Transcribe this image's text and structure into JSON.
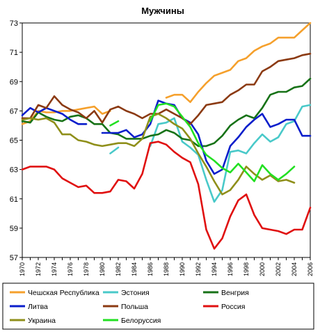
{
  "chart_data": {
    "type": "line",
    "title": "Мужчины",
    "xlabel": "",
    "ylabel": "",
    "ylim": [
      57,
      73
    ],
    "yticks": [
      57,
      59,
      61,
      63,
      65,
      67,
      69,
      71,
      73
    ],
    "xlim": [
      1970,
      2006
    ],
    "xticks": [
      1970,
      1972,
      1974,
      1976,
      1978,
      1980,
      1982,
      1984,
      1986,
      1988,
      1990,
      1992,
      1994,
      1996,
      1998,
      2000,
      2002,
      2004,
      2006
    ],
    "grid": false,
    "legend_position": "bottom",
    "series": [
      {
        "name": "Чешская Республика",
        "color": "#f5a02c",
        "values": [
          [
            1970,
            66.1
          ],
          [
            1971,
            66.3
          ],
          [
            1972,
            67.0
          ],
          [
            1973,
            66.9
          ],
          [
            1974,
            66.9
          ],
          [
            1975,
            67.0
          ],
          [
            1976,
            67.0
          ],
          [
            1977,
            67.1
          ],
          [
            1978,
            67.2
          ],
          [
            1979,
            67.3
          ],
          [
            1980,
            66.8
          ],
          [
            1981,
            67.0
          ],
          [
            1982,
            null
          ],
          [
            1983,
            null
          ],
          [
            1984,
            null
          ],
          [
            1985,
            null
          ],
          [
            1986,
            null
          ],
          [
            1987,
            null
          ],
          [
            1988,
            67.9
          ],
          [
            1989,
            68.1
          ],
          [
            1990,
            68.1
          ],
          [
            1991,
            67.6
          ],
          [
            1992,
            68.3
          ],
          [
            1993,
            68.9
          ],
          [
            1994,
            69.4
          ],
          [
            1995,
            69.6
          ],
          [
            1996,
            69.8
          ],
          [
            1997,
            70.4
          ],
          [
            1998,
            70.6
          ],
          [
            1999,
            71.1
          ],
          [
            2000,
            71.4
          ],
          [
            2001,
            71.6
          ],
          [
            2002,
            72.0
          ],
          [
            2003,
            72.0
          ],
          [
            2004,
            72.0
          ],
          [
            2005,
            72.5
          ],
          [
            2006,
            73.0
          ]
        ]
      },
      {
        "name": "Эстония",
        "color": "#49c9c9",
        "values": [
          [
            1970,
            null
          ],
          [
            1971,
            null
          ],
          [
            1972,
            null
          ],
          [
            1973,
            null
          ],
          [
            1974,
            null
          ],
          [
            1975,
            null
          ],
          [
            1976,
            null
          ],
          [
            1977,
            null
          ],
          [
            1978,
            null
          ],
          [
            1979,
            null
          ],
          [
            1980,
            null
          ],
          [
            1981,
            64.1
          ],
          [
            1982,
            64.5
          ],
          [
            1983,
            null
          ],
          [
            1984,
            null
          ],
          [
            1985,
            null
          ],
          [
            1986,
            64.6
          ],
          [
            1987,
            66.1
          ],
          [
            1988,
            66.2
          ],
          [
            1989,
            66.5
          ],
          [
            1990,
            64.9
          ],
          [
            1991,
            64.5
          ],
          [
            1992,
            64.0
          ],
          [
            1993,
            62.3
          ],
          [
            1994,
            60.8
          ],
          [
            1995,
            61.6
          ],
          [
            1996,
            64.2
          ],
          [
            1997,
            64.3
          ],
          [
            1998,
            64.1
          ],
          [
            1999,
            64.8
          ],
          [
            2000,
            65.4
          ],
          [
            2001,
            64.9
          ],
          [
            2002,
            65.2
          ],
          [
            2003,
            66.1
          ],
          [
            2004,
            66.3
          ],
          [
            2005,
            67.3
          ],
          [
            2006,
            67.4
          ]
        ]
      },
      {
        "name": "Венгрия",
        "color": "#177217",
        "values": [
          [
            1970,
            66.3
          ],
          [
            1971,
            66.2
          ],
          [
            1972,
            66.9
          ],
          [
            1973,
            66.6
          ],
          [
            1974,
            66.4
          ],
          [
            1975,
            66.3
          ],
          [
            1976,
            66.6
          ],
          [
            1977,
            66.7
          ],
          [
            1978,
            66.5
          ],
          [
            1979,
            66.1
          ],
          [
            1980,
            66.1
          ],
          [
            1981,
            65.5
          ],
          [
            1982,
            65.4
          ],
          [
            1983,
            65.1
          ],
          [
            1984,
            65.1
          ],
          [
            1985,
            65.1
          ],
          [
            1986,
            65.3
          ],
          [
            1987,
            65.4
          ],
          [
            1988,
            65.7
          ],
          [
            1989,
            65.5
          ],
          [
            1990,
            65.1
          ],
          [
            1991,
            65.0
          ],
          [
            1992,
            64.6
          ],
          [
            1993,
            64.6
          ],
          [
            1994,
            64.8
          ],
          [
            1995,
            65.3
          ],
          [
            1996,
            66.0
          ],
          [
            1997,
            66.4
          ],
          [
            1998,
            66.7
          ],
          [
            1999,
            66.5
          ],
          [
            2000,
            67.2
          ],
          [
            2001,
            68.1
          ],
          [
            2002,
            68.3
          ],
          [
            2003,
            68.3
          ],
          [
            2004,
            68.6
          ],
          [
            2005,
            68.7
          ],
          [
            2006,
            69.2
          ]
        ]
      },
      {
        "name": "Литва",
        "color": "#0a1ecb",
        "values": [
          [
            1970,
            66.7
          ],
          [
            1971,
            67.2
          ],
          [
            1972,
            66.9
          ],
          [
            1973,
            67.2
          ],
          [
            1974,
            67.0
          ],
          [
            1975,
            66.8
          ],
          [
            1976,
            66.4
          ],
          [
            1977,
            66.1
          ],
          [
            1978,
            66.1
          ],
          [
            1979,
            null
          ],
          [
            1980,
            65.5
          ],
          [
            1981,
            65.5
          ],
          [
            1982,
            65.5
          ],
          [
            1983,
            65.7
          ],
          [
            1984,
            65.2
          ],
          [
            1985,
            65.4
          ],
          [
            1986,
            66.1
          ],
          [
            1987,
            67.7
          ],
          [
            1988,
            67.5
          ],
          [
            1989,
            67.4
          ],
          [
            1990,
            66.5
          ],
          [
            1991,
            66.2
          ],
          [
            1992,
            65.4
          ],
          [
            1993,
            63.6
          ],
          [
            1994,
            62.7
          ],
          [
            1995,
            63.0
          ],
          [
            1996,
            64.6
          ],
          [
            1997,
            65.2
          ],
          [
            1998,
            65.9
          ],
          [
            1999,
            66.4
          ],
          [
            2000,
            66.8
          ],
          [
            2001,
            65.9
          ],
          [
            2002,
            66.1
          ],
          [
            2003,
            66.4
          ],
          [
            2004,
            66.4
          ],
          [
            2005,
            65.3
          ],
          [
            2006,
            65.3
          ]
        ]
      },
      {
        "name": "Польша",
        "color": "#8b3a12",
        "values": [
          [
            1970,
            66.5
          ],
          [
            1971,
            66.5
          ],
          [
            1972,
            67.4
          ],
          [
            1973,
            67.2
          ],
          [
            1974,
            68.0
          ],
          [
            1975,
            67.4
          ],
          [
            1976,
            67.1
          ],
          [
            1977,
            66.9
          ],
          [
            1978,
            66.5
          ],
          [
            1979,
            67.0
          ],
          [
            1980,
            66.2
          ],
          [
            1981,
            67.1
          ],
          [
            1982,
            67.3
          ],
          [
            1983,
            67.0
          ],
          [
            1984,
            66.8
          ],
          [
            1985,
            66.5
          ],
          [
            1986,
            66.8
          ],
          [
            1987,
            66.8
          ],
          [
            1988,
            67.1
          ],
          [
            1989,
            66.8
          ],
          [
            1990,
            66.5
          ],
          [
            1991,
            66.1
          ],
          [
            1992,
            66.7
          ],
          [
            1993,
            67.4
          ],
          [
            1994,
            67.5
          ],
          [
            1995,
            67.6
          ],
          [
            1996,
            68.1
          ],
          [
            1997,
            68.4
          ],
          [
            1998,
            68.8
          ],
          [
            1999,
            68.8
          ],
          [
            2000,
            69.7
          ],
          [
            2001,
            70.0
          ],
          [
            2002,
            70.4
          ],
          [
            2003,
            70.5
          ],
          [
            2004,
            70.6
          ],
          [
            2005,
            70.8
          ],
          [
            2006,
            70.9
          ]
        ]
      },
      {
        "name": "Россия",
        "color": "#e01010",
        "values": [
          [
            1970,
            63.0
          ],
          [
            1971,
            63.2
          ],
          [
            1972,
            63.2
          ],
          [
            1973,
            63.2
          ],
          [
            1974,
            63.0
          ],
          [
            1975,
            62.4
          ],
          [
            1976,
            62.1
          ],
          [
            1977,
            61.8
          ],
          [
            1978,
            61.9
          ],
          [
            1979,
            61.4
          ],
          [
            1980,
            61.4
          ],
          [
            1981,
            61.5
          ],
          [
            1982,
            62.3
          ],
          [
            1983,
            62.2
          ],
          [
            1984,
            61.7
          ],
          [
            1985,
            62.7
          ],
          [
            1986,
            64.8
          ],
          [
            1987,
            64.9
          ],
          [
            1988,
            64.7
          ],
          [
            1989,
            64.2
          ],
          [
            1990,
            63.8
          ],
          [
            1991,
            63.5
          ],
          [
            1992,
            62.0
          ],
          [
            1993,
            58.9
          ],
          [
            1994,
            57.6
          ],
          [
            1995,
            58.3
          ],
          [
            1996,
            59.8
          ],
          [
            1997,
            60.9
          ],
          [
            1998,
            61.3
          ],
          [
            1999,
            59.9
          ],
          [
            2000,
            59.0
          ],
          [
            2001,
            58.9
          ],
          [
            2002,
            58.8
          ],
          [
            2003,
            58.6
          ],
          [
            2004,
            58.9
          ],
          [
            2005,
            58.9
          ],
          [
            2006,
            60.4
          ]
        ]
      },
      {
        "name": "Украина",
        "color": "#8f8f1a",
        "values": [
          [
            1970,
            66.4
          ],
          [
            1971,
            66.5
          ],
          [
            1972,
            66.4
          ],
          [
            1973,
            66.5
          ],
          [
            1974,
            66.2
          ],
          [
            1975,
            65.4
          ],
          [
            1976,
            65.4
          ],
          [
            1977,
            65.0
          ],
          [
            1978,
            64.9
          ],
          [
            1979,
            64.7
          ],
          [
            1980,
            64.6
          ],
          [
            1981,
            64.7
          ],
          [
            1982,
            64.8
          ],
          [
            1983,
            64.8
          ],
          [
            1984,
            64.6
          ],
          [
            1985,
            65.1
          ],
          [
            1986,
            66.6
          ],
          [
            1987,
            66.8
          ],
          [
            1988,
            66.5
          ],
          [
            1989,
            66.1
          ],
          [
            1990,
            65.8
          ],
          [
            1991,
            65.1
          ],
          [
            1992,
            64.1
          ],
          [
            1993,
            63.2
          ],
          [
            1994,
            62.2
          ],
          [
            1995,
            61.3
          ],
          [
            1996,
            61.6
          ],
          [
            1997,
            62.3
          ],
          [
            1998,
            63.2
          ],
          [
            1999,
            62.7
          ],
          [
            2000,
            62.3
          ],
          [
            2001,
            62.6
          ],
          [
            2002,
            62.2
          ],
          [
            2003,
            62.3
          ],
          [
            2004,
            62.1
          ],
          [
            2005,
            null
          ],
          [
            2006,
            null
          ]
        ]
      },
      {
        "name": "Белоруссия",
        "color": "#22e022",
        "values": [
          [
            1970,
            null
          ],
          [
            1971,
            null
          ],
          [
            1972,
            null
          ],
          [
            1973,
            null
          ],
          [
            1974,
            null
          ],
          [
            1975,
            null
          ],
          [
            1976,
            null
          ],
          [
            1977,
            null
          ],
          [
            1978,
            null
          ],
          [
            1979,
            null
          ],
          [
            1980,
            null
          ],
          [
            1981,
            66.0
          ],
          [
            1982,
            66.3
          ],
          [
            1983,
            null
          ],
          [
            1984,
            null
          ],
          [
            1985,
            null
          ],
          [
            1986,
            66.3
          ],
          [
            1987,
            67.4
          ],
          [
            1988,
            67.5
          ],
          [
            1989,
            67.3
          ],
          [
            1990,
            66.6
          ],
          [
            1991,
            65.9
          ],
          [
            1992,
            64.8
          ],
          [
            1993,
            64.0
          ],
          [
            1994,
            63.6
          ],
          [
            1995,
            63.1
          ],
          [
            1996,
            62.8
          ],
          [
            1997,
            63.4
          ],
          [
            1998,
            62.8
          ],
          [
            1999,
            62.2
          ],
          [
            2000,
            63.3
          ],
          [
            2001,
            62.7
          ],
          [
            2002,
            62.3
          ],
          [
            2003,
            62.7
          ],
          [
            2004,
            63.2
          ],
          [
            2005,
            null
          ],
          [
            2006,
            null
          ]
        ]
      }
    ]
  }
}
